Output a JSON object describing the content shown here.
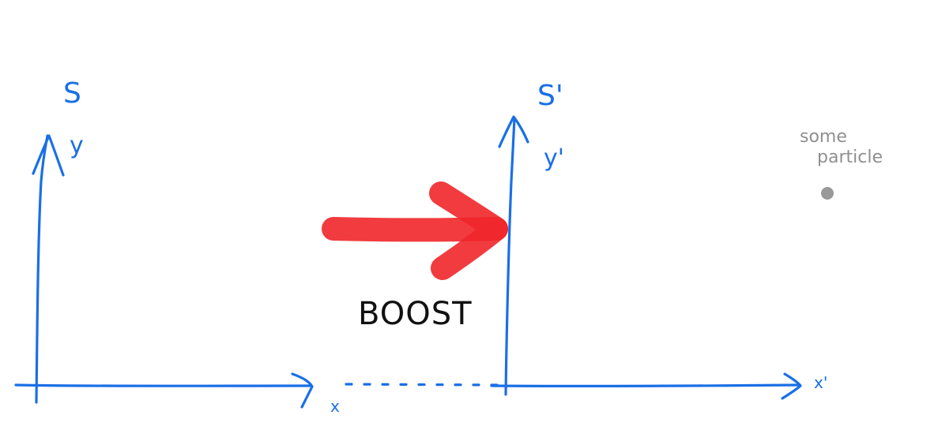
{
  "frames": {
    "rest": {
      "name": "S",
      "x_label": "x",
      "y_label": "y"
    },
    "boosted": {
      "name": "S'",
      "x_label": "x'",
      "y_label": "y'"
    }
  },
  "boost": {
    "label": "BOOST",
    "arrow_color": "#f0262a"
  },
  "particle": {
    "label_line1": "some",
    "label_line2": "particle",
    "color": "#999999"
  },
  "axis_color": "#1a6fe6"
}
